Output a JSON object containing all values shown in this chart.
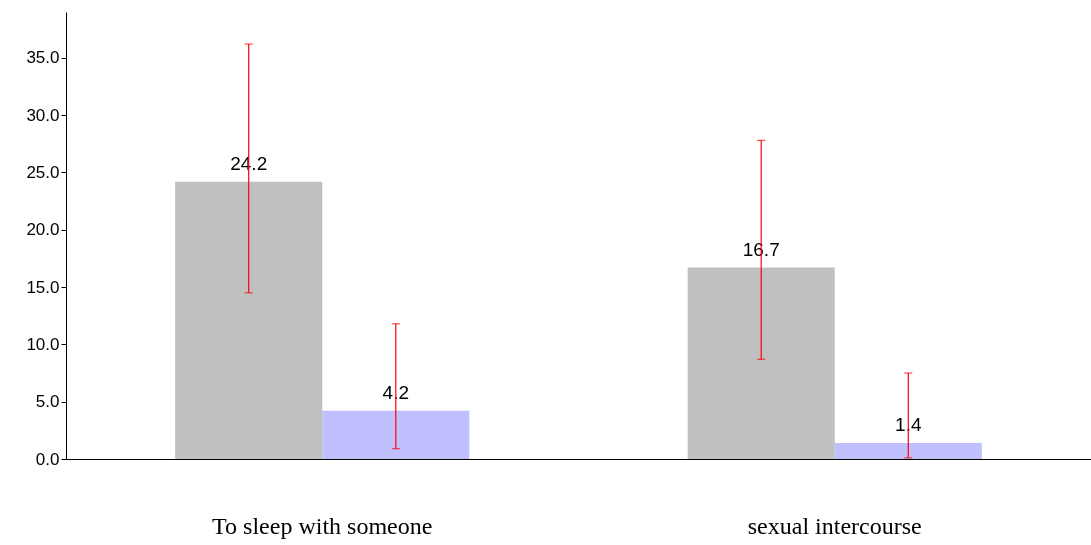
{
  "chart_data": {
    "type": "bar",
    "categories": [
      "To sleep with someone",
      "sexual intercourse"
    ],
    "series": [
      {
        "color": "#c0c0c0",
        "values": [
          24.2,
          16.7
        ],
        "errors": [
          [
            14.5,
            36.2
          ],
          [
            8.7,
            27.8
          ]
        ]
      },
      {
        "color": "#c0c0ff",
        "values": [
          4.2,
          1.4
        ],
        "errors": [
          [
            0.9,
            11.8
          ],
          [
            0.1,
            7.5
          ]
        ]
      }
    ],
    "ylim": [
      0,
      39
    ],
    "yticks": [
      {
        "value": 0,
        "label": "0.0"
      },
      {
        "value": 5,
        "label": "5.0"
      },
      {
        "value": 10,
        "label": "10.0"
      },
      {
        "value": 15,
        "label": "15.0"
      },
      {
        "value": 20,
        "label": "20.0"
      },
      {
        "value": 25,
        "label": "25.0"
      },
      {
        "value": 30,
        "label": "30.0"
      },
      {
        "value": 35,
        "label": "35.0"
      }
    ],
    "data_labels": true,
    "grid": false
  }
}
